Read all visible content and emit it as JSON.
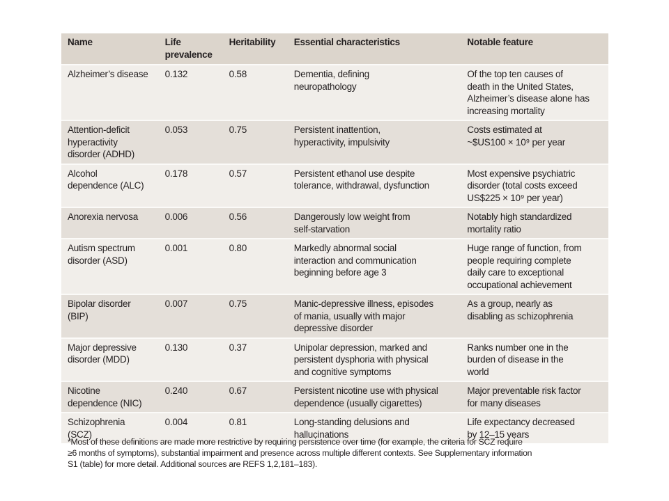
{
  "table": {
    "headers": [
      "Name",
      "Life\nprevalence",
      "Heritability",
      "Essential characteristics",
      "Notable feature"
    ],
    "rows": [
      {
        "name": "Alzheimer’s disease",
        "prevalence": "0.132",
        "heritability": "0.58",
        "essential": "Dementia, defining\nneuropathology",
        "notable": "Of the top ten causes of\ndeath in the United States,\nAlzheimer’s disease alone has\nincreasing mortality"
      },
      {
        "name": "Attention-deficit\nhyperactivity\ndisorder (ADHD)",
        "prevalence": "0.053",
        "heritability": "0.75",
        "essential": "Persistent inattention,\nhyperactivity, impulsivity",
        "notable": "Costs estimated at\n~$US100 × 10⁹ per year"
      },
      {
        "name": "Alcohol\ndependence (ALC)",
        "prevalence": "0.178",
        "heritability": "0.57",
        "essential": "Persistent ethanol use despite\ntolerance, withdrawal, dysfunction",
        "notable": "Most expensive psychiatric\ndisorder (total costs exceed\nUS$225 × 10⁹ per year)"
      },
      {
        "name": "Anorexia nervosa",
        "prevalence": "0.006",
        "heritability": "0.56",
        "essential": "Dangerously low weight from\nself-starvation",
        "notable": "Notably high standardized\nmortality ratio"
      },
      {
        "name": "Autism spectrum\ndisorder (ASD)",
        "prevalence": "0.001",
        "heritability": "0.80",
        "essential": "Markedly abnormal social\ninteraction and communication\nbeginning before age 3",
        "notable": "Huge range of function, from\npeople requiring complete\ndaily care to exceptional\noccupational achievement"
      },
      {
        "name": "Bipolar disorder\n(BIP)",
        "prevalence": "0.007",
        "heritability": "0.75",
        "essential": "Manic-depressive illness, episodes\nof mania, usually with major\ndepressive disorder",
        "notable": "As a group, nearly as\ndisabling as schizophrenia"
      },
      {
        "name": "Major depressive\ndisorder (MDD)",
        "prevalence": "0.130",
        "heritability": "0.37",
        "essential": "Unipolar depression, marked and\npersistent dysphoria with physical\nand cognitive symptoms",
        "notable": "Ranks number one in the\nburden of disease in the\nworld"
      },
      {
        "name": "Nicotine\ndependence (NIC)",
        "prevalence": "0.240",
        "heritability": "0.67",
        "essential": "Persistent nicotine use with physical\ndependence (usually cigarettes)",
        "notable": "Major preventable risk factor\nfor many diseases"
      },
      {
        "name": "Schizophrenia\n(SCZ)",
        "prevalence": "0.004",
        "heritability": "0.81",
        "essential": "Long-standing delusions and\nhallucinations",
        "notable": "Life expectancy decreased\nby 12–15 years"
      }
    ]
  },
  "footnote": "*Most of these definitions are made more restrictive by requiring persistence over time (for example, the criteria for SCZ require\n≥6 months of symptoms), substantial impairment and presence across multiple different contexts. See Supplementary information\nS1 (table) for more detail. Additional sources are REFS 1,2,181–183).",
  "colors": {
    "header": "#dcd5cc",
    "row_light": "#f1eeea",
    "row_dark": "#e4dfd9"
  }
}
